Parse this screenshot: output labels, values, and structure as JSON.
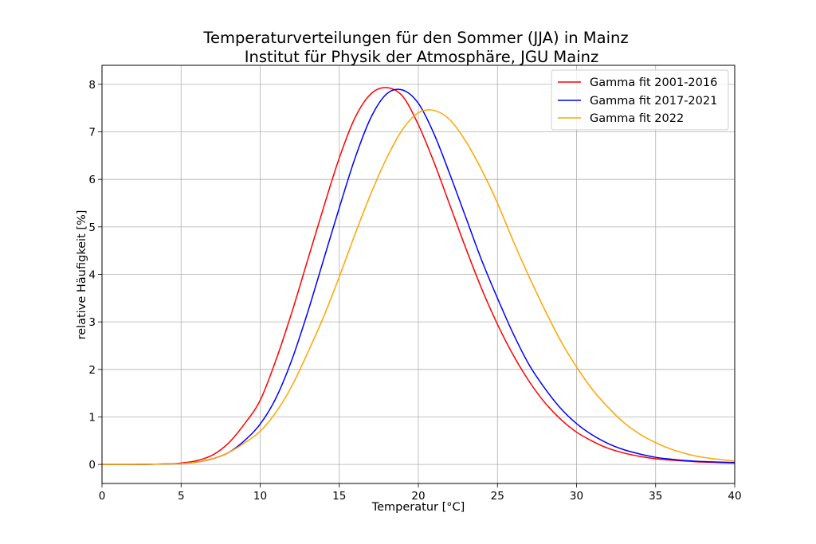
{
  "chart_data": {
    "type": "line",
    "title": "Temperaturverteilungen für den Sommer (JJA) in Mainz",
    "subtitle": "Institut für Physik der Atmosphäre, JGU Mainz",
    "xlabel": "Temperatur [°C]",
    "ylabel": "relative Häufigkeit [%]",
    "xlim": [
      0,
      40
    ],
    "ylim": [
      -0.4,
      8.4
    ],
    "xticks": [
      "0",
      "5",
      "10",
      "15",
      "20",
      "25",
      "30",
      "35",
      "40"
    ],
    "yticks": [
      "0",
      "1",
      "2",
      "3",
      "4",
      "5",
      "6",
      "7",
      "8"
    ],
    "grid": true,
    "legend_position": "top-right",
    "x": [
      0,
      2,
      4,
      5,
      6,
      7,
      8,
      9,
      10,
      11,
      12,
      13,
      14,
      15,
      16,
      17,
      18,
      19,
      20,
      21,
      22,
      23,
      24,
      25,
      26,
      27,
      28,
      29,
      30,
      31,
      32,
      33,
      34,
      35,
      36,
      37,
      38,
      40
    ],
    "series": [
      {
        "name": "Gamma fit 2001-2016",
        "color": "#ff0000",
        "values": [
          0,
          0,
          0.01,
          0.03,
          0.08,
          0.2,
          0.45,
          0.85,
          1.35,
          2.2,
          3.2,
          4.3,
          5.4,
          6.45,
          7.3,
          7.8,
          7.93,
          7.75,
          7.15,
          6.35,
          5.45,
          4.55,
          3.7,
          2.95,
          2.3,
          1.75,
          1.3,
          0.95,
          0.68,
          0.49,
          0.34,
          0.24,
          0.17,
          0.12,
          0.09,
          0.07,
          0.05,
          0.03
        ]
      },
      {
        "name": "Gamma fit 2017-2021",
        "color": "#0000ff",
        "values": [
          0,
          0,
          0.01,
          0.02,
          0.05,
          0.12,
          0.25,
          0.5,
          0.85,
          1.4,
          2.2,
          3.2,
          4.3,
          5.4,
          6.45,
          7.3,
          7.8,
          7.88,
          7.6,
          6.95,
          6.1,
          5.2,
          4.3,
          3.5,
          2.75,
          2.1,
          1.6,
          1.18,
          0.86,
          0.62,
          0.44,
          0.31,
          0.22,
          0.15,
          0.11,
          0.08,
          0.06,
          0.04
        ]
      },
      {
        "name": "Gamma fit 2022",
        "color": "#ffa500",
        "values": [
          0,
          0,
          0.01,
          0.02,
          0.05,
          0.12,
          0.25,
          0.45,
          0.7,
          1.1,
          1.65,
          2.35,
          3.1,
          3.95,
          4.85,
          5.7,
          6.45,
          7.05,
          7.4,
          7.45,
          7.25,
          6.8,
          6.2,
          5.5,
          4.7,
          3.95,
          3.25,
          2.6,
          2.05,
          1.58,
          1.2,
          0.88,
          0.64,
          0.46,
          0.32,
          0.22,
          0.15,
          0.07
        ]
      }
    ]
  }
}
